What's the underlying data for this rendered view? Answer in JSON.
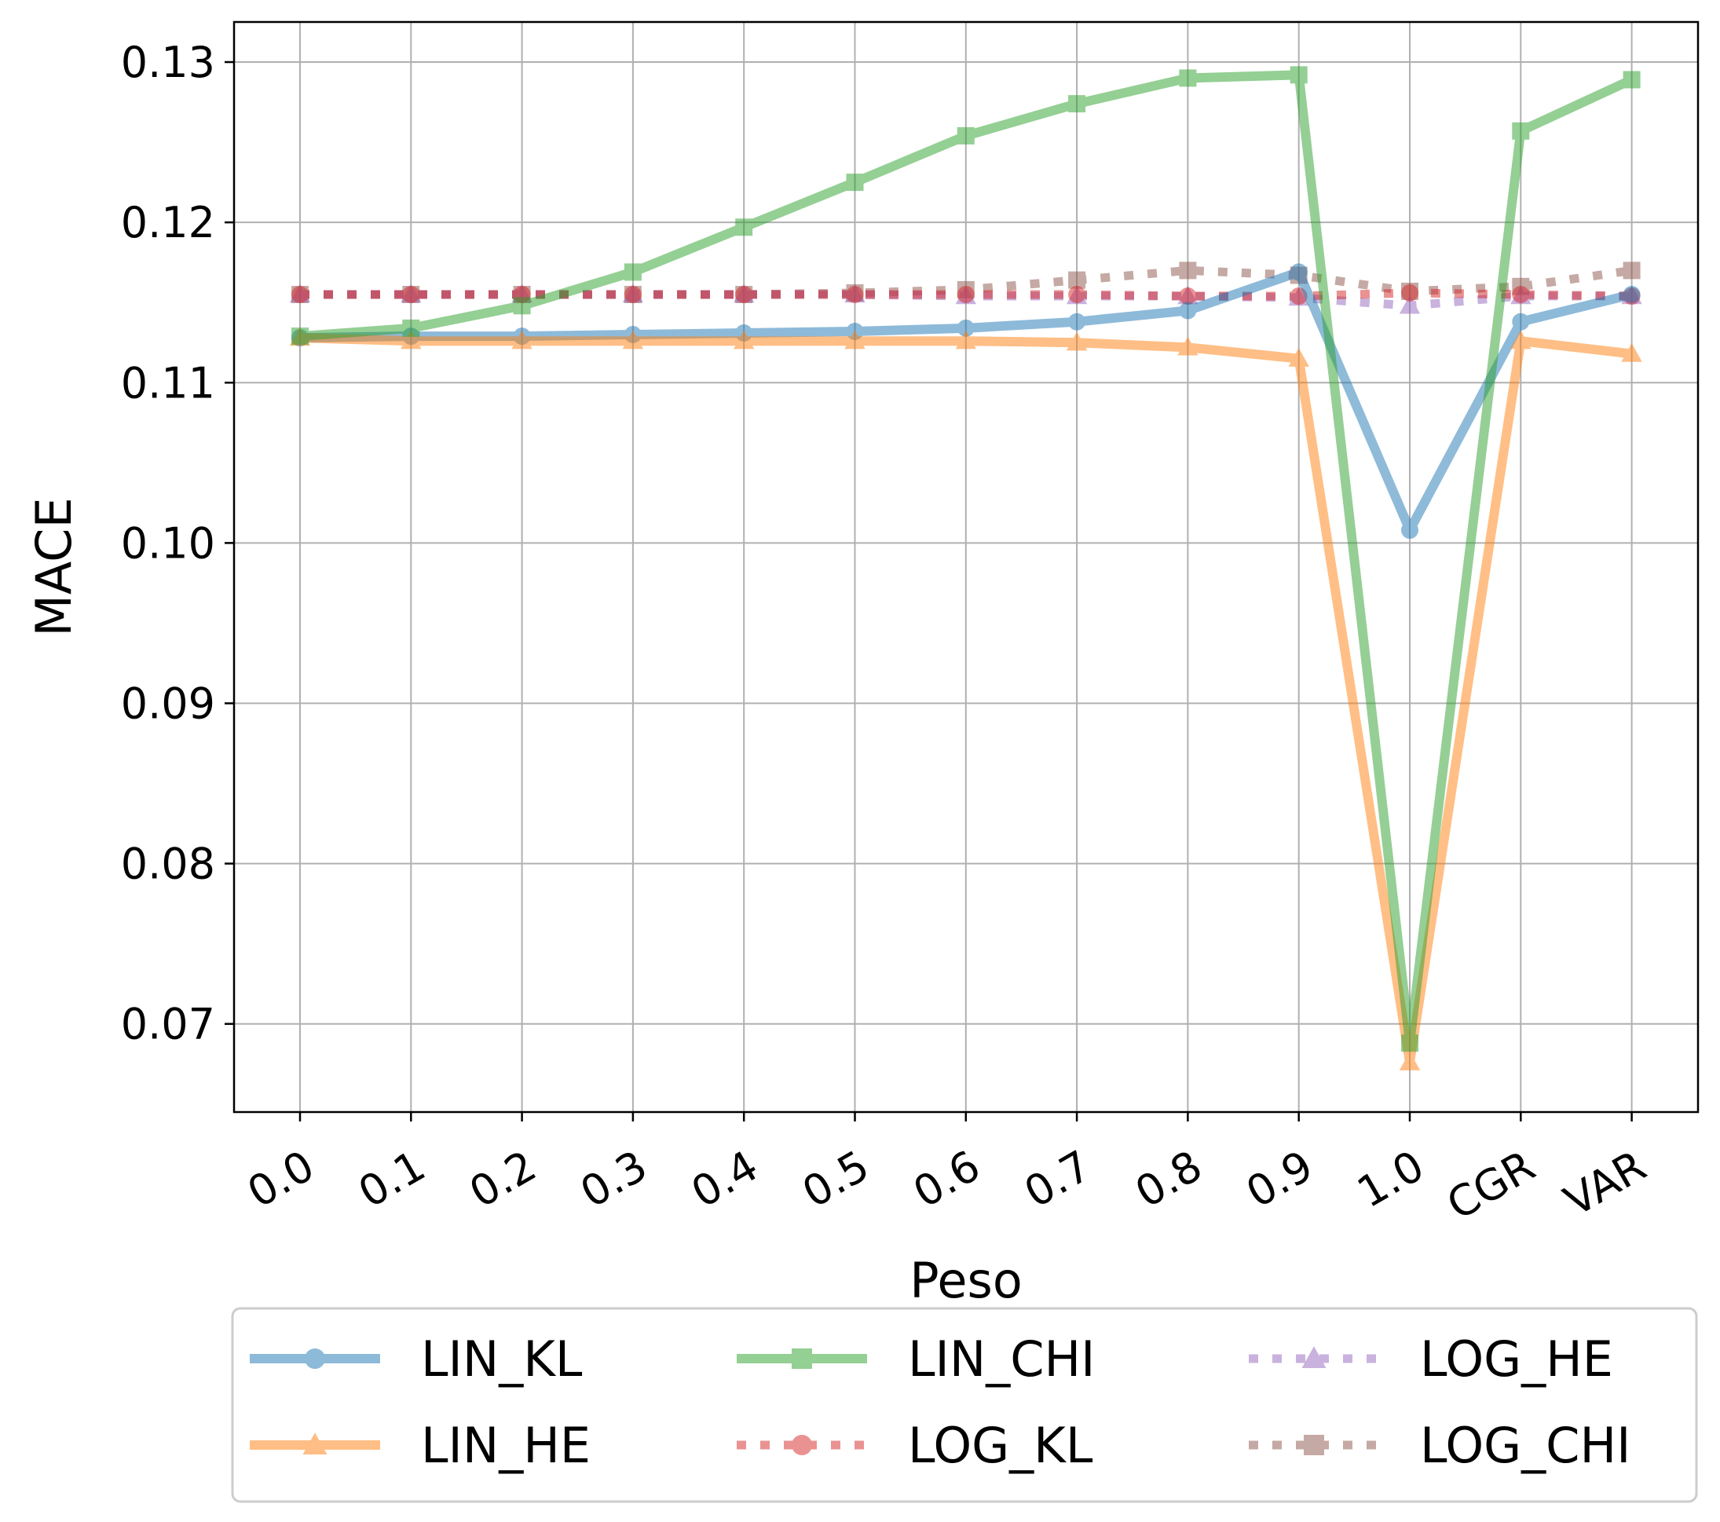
{
  "chart_data": {
    "type": "line",
    "xlabel": "Peso",
    "ylabel": "MACE",
    "categories": [
      "0.0",
      "0.1",
      "0.2",
      "0.3",
      "0.4",
      "0.5",
      "0.6",
      "0.7",
      "0.8",
      "0.9",
      "1.0",
      "CGR",
      "VAR"
    ],
    "yticks": [
      "0.07",
      "0.08",
      "0.09",
      "0.10",
      "0.11",
      "0.12",
      "0.13"
    ],
    "ylim": [
      0.0645,
      0.1325
    ],
    "grid": true,
    "legend_position": "bottom",
    "series": [
      {
        "name": "LIN_KL",
        "color": "#1f77b4",
        "style": "solid",
        "marker": "circle",
        "values": [
          0.1128,
          0.1129,
          0.1129,
          0.113,
          0.1131,
          0.1132,
          0.1134,
          0.1138,
          0.1145,
          0.1169,
          0.1008,
          0.1138,
          0.1155
        ]
      },
      {
        "name": "LIN_HE",
        "color": "#ff7f0e",
        "style": "solid",
        "marker": "triangle",
        "values": [
          0.1128,
          0.1126,
          0.1126,
          0.1126,
          0.1126,
          0.1126,
          0.1126,
          0.1125,
          0.1122,
          0.1115,
          0.0676,
          0.1126,
          0.1118
        ]
      },
      {
        "name": "LIN_CHI",
        "color": "#2ca02c",
        "style": "solid",
        "marker": "square",
        "values": [
          0.1129,
          0.1134,
          0.1148,
          0.1169,
          0.1197,
          0.1225,
          0.1254,
          0.1274,
          0.129,
          0.1292,
          0.0688,
          0.1257,
          0.1289
        ]
      },
      {
        "name": "LOG_KL",
        "color": "#d62728",
        "style": "dotted",
        "marker": "circle",
        "values": [
          0.1155,
          0.1155,
          0.1155,
          0.1155,
          0.1155,
          0.1155,
          0.1155,
          0.1155,
          0.1154,
          0.1154,
          0.1156,
          0.1155,
          0.1154
        ]
      },
      {
        "name": "LOG_HE",
        "color": "#9467bd",
        "style": "dotted",
        "marker": "triangle",
        "values": [
          0.1155,
          0.1155,
          0.1155,
          0.1155,
          0.1155,
          0.1155,
          0.1154,
          0.1154,
          0.1154,
          0.1153,
          0.1148,
          0.1154,
          0.1154
        ]
      },
      {
        "name": "LOG_CHI",
        "color": "#8c564b",
        "style": "dotted",
        "marker": "square",
        "values": [
          0.1155,
          0.1155,
          0.1155,
          0.1155,
          0.1155,
          0.1156,
          0.1158,
          0.1164,
          0.117,
          0.1167,
          0.1157,
          0.116,
          0.117
        ]
      }
    ]
  }
}
